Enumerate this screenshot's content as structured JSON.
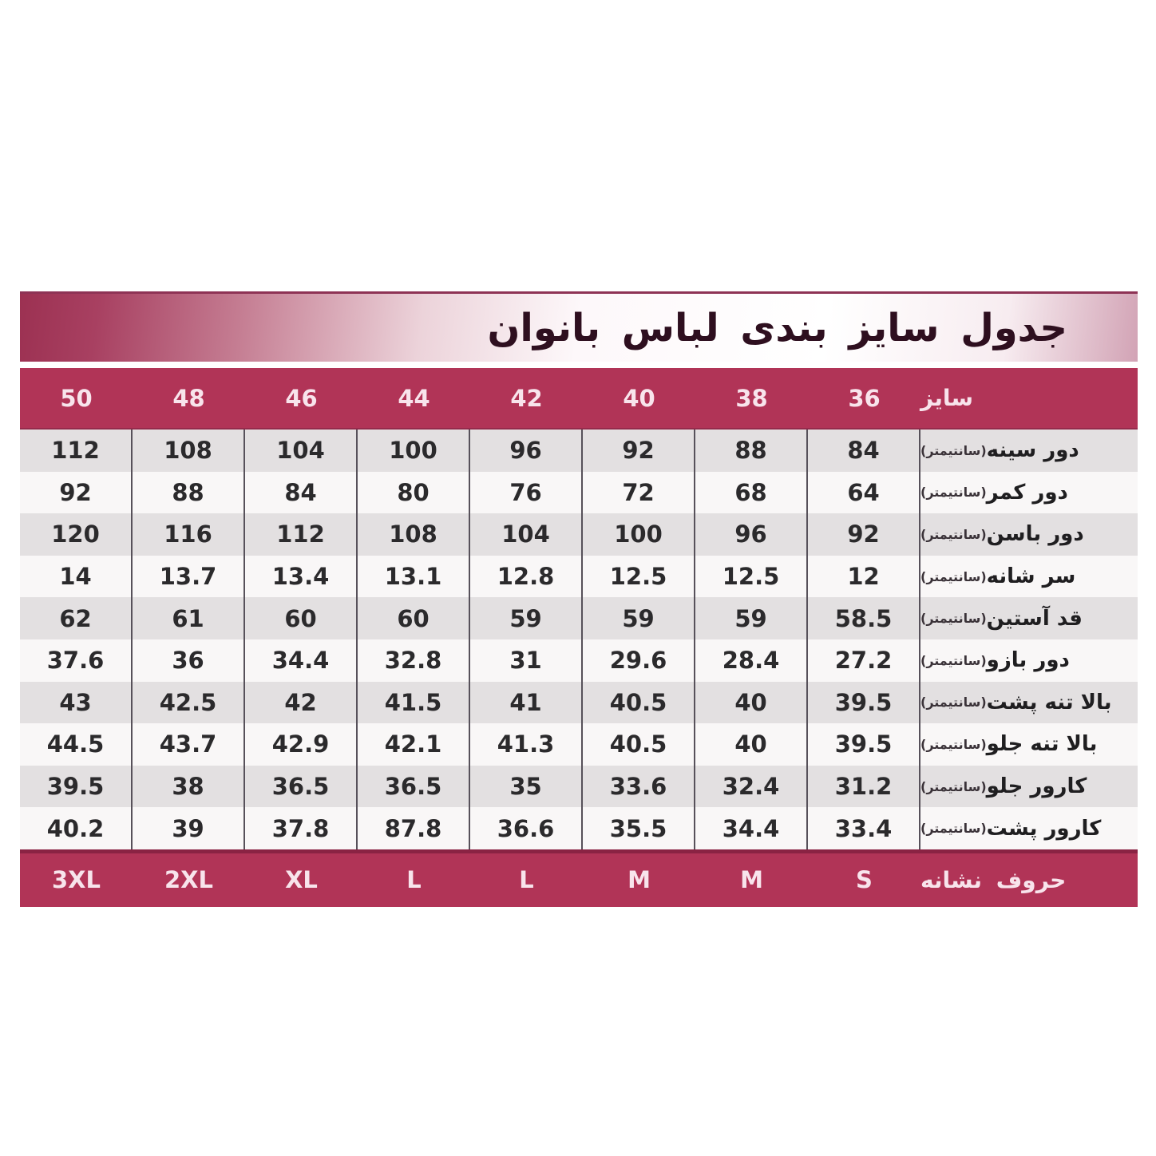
{
  "chart_data": {
    "type": "table",
    "title": "جدول سایز بندی لباس بانوان",
    "size_header_label": "سایز",
    "sizes": [
      "50",
      "48",
      "46",
      "44",
      "42",
      "40",
      "38",
      "36"
    ],
    "unit_suffix": "(سانتیمتر)",
    "measurements": [
      {
        "label": "دور سینه",
        "values": [
          "112",
          "108",
          "104",
          "100",
          "96",
          "92",
          "88",
          "84"
        ]
      },
      {
        "label": "دور کمر",
        "values": [
          "92",
          "88",
          "84",
          "80",
          "76",
          "72",
          "68",
          "64"
        ]
      },
      {
        "label": "دور باسن",
        "values": [
          "120",
          "116",
          "112",
          "108",
          "104",
          "100",
          "96",
          "92"
        ]
      },
      {
        "label": "سر شانه",
        "values": [
          "14",
          "13.7",
          "13.4",
          "13.1",
          "12.8",
          "12.5",
          "12.5",
          "12"
        ]
      },
      {
        "label": "قد آستین",
        "values": [
          "62",
          "61",
          "60",
          "60",
          "59",
          "59",
          "59",
          "58.5"
        ]
      },
      {
        "label": "دور بازو",
        "values": [
          "37.6",
          "36",
          "34.4",
          "32.8",
          "31",
          "29.6",
          "28.4",
          "27.2"
        ]
      },
      {
        "label": "بالا تنه پشت",
        "values": [
          "43",
          "42.5",
          "42",
          "41.5",
          "41",
          "40.5",
          "40",
          "39.5"
        ]
      },
      {
        "label": "بالا تنه جلو",
        "values": [
          "44.5",
          "43.7",
          "42.9",
          "42.1",
          "41.3",
          "40.5",
          "40",
          "39.5"
        ]
      },
      {
        "label": "کارور جلو",
        "values": [
          "39.5",
          "38",
          "36.5",
          "36.5",
          "35",
          "33.6",
          "32.4",
          "31.2"
        ]
      },
      {
        "label": "کارور پشت",
        "values": [
          "40.2",
          "39",
          "37.8",
          "87.8",
          "36.6",
          "35.5",
          "34.4",
          "33.4"
        ]
      }
    ],
    "letter_row_label": "حروف نشانه",
    "letters": [
      "3XL",
      "2XL",
      "XL",
      "L",
      "L",
      "M",
      "M",
      "S"
    ]
  },
  "colors": {
    "band_crimson": "#b13457",
    "band_dark_edge": "#8a2343",
    "title_maroon": "#9c3152",
    "stripe_gray": "#e3e0e1",
    "stripe_light": "#f9f7f7",
    "divider": "#57515a",
    "header_text": "#f8e4ec",
    "data_text": "#2b2a2c",
    "title_text": "#2e0f1f"
  }
}
